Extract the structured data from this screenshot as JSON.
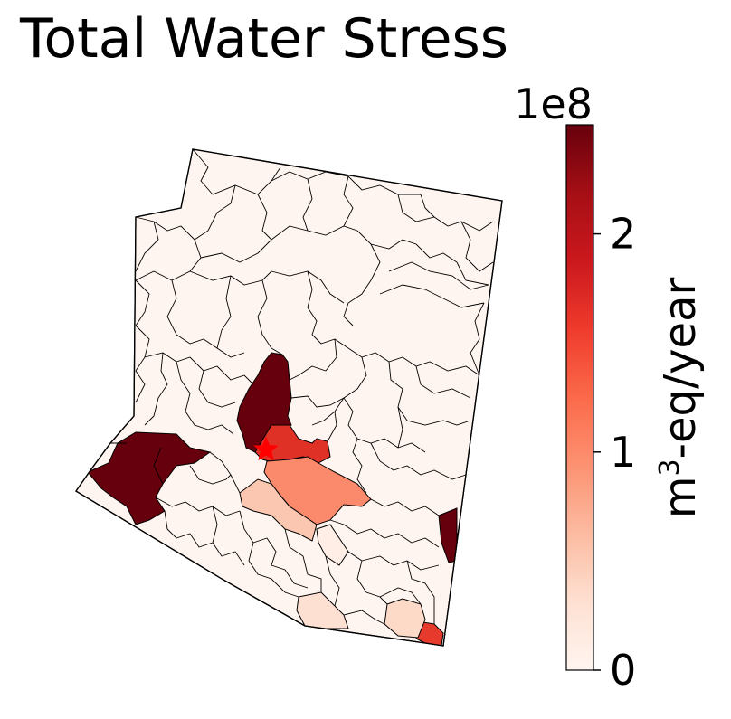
{
  "title": "Total Water Stress",
  "colorbar": {
    "offset_text": "1e8",
    "label_main": "m",
    "label_sup": "3",
    "label_rest": "-eq/year",
    "min": 0,
    "max": 2.5,
    "ticks": [
      {
        "value": 0,
        "label": "0"
      },
      {
        "value": 1,
        "label": "1"
      },
      {
        "value": 2,
        "label": "2"
      }
    ],
    "colormap": "Reds",
    "stops": [
      "#fff5f0",
      "#fee0d2",
      "#fcbba1",
      "#fc9272",
      "#fb6a4a",
      "#ef3b2c",
      "#cb181d",
      "#a50f15",
      "#67000d"
    ]
  },
  "map": {
    "region": "Arizona",
    "highlight_marker": "star",
    "marker_color": "#ff0000",
    "edge_color": "#000000"
  }
}
